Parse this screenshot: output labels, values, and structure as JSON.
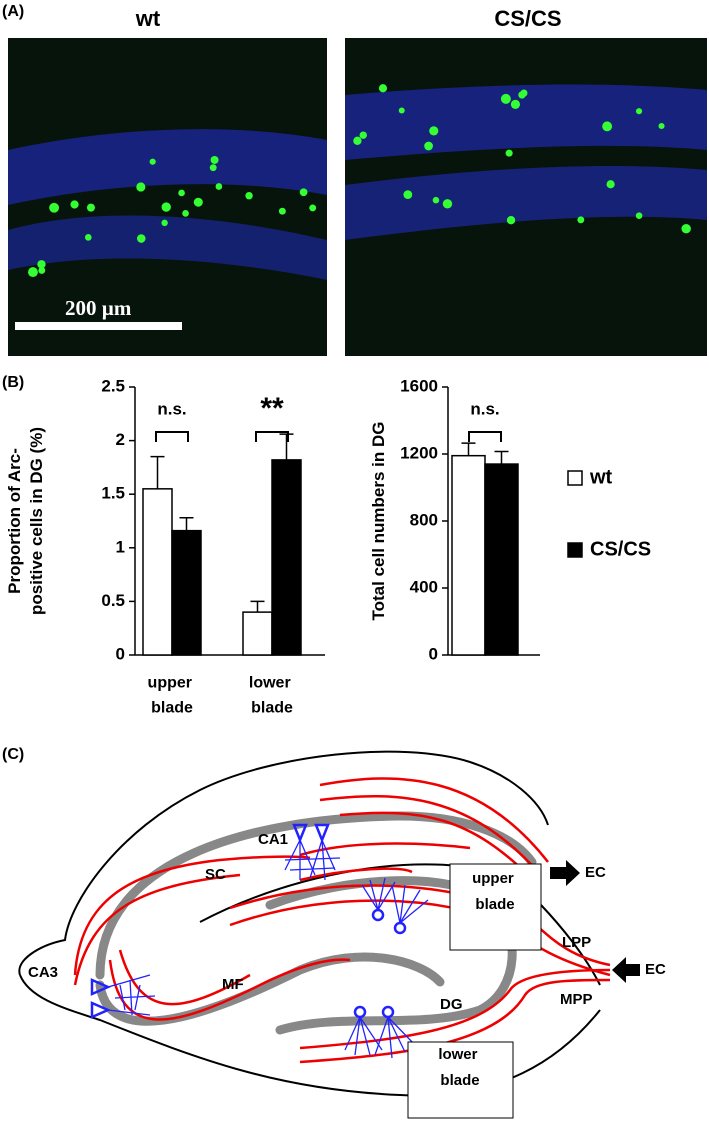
{
  "panels": {
    "A": {
      "label": "(A)",
      "titles": [
        "wt",
        "CS/CS"
      ],
      "scale_bar": "200 µm"
    },
    "B": {
      "label": "(B)"
    },
    "C": {
      "label": "(C)"
    }
  },
  "chart_data": [
    {
      "type": "bar",
      "ylabel": "Proportion of Arc-positive cells in DG (%)",
      "categories": [
        "upper blade",
        "lower blade"
      ],
      "series": [
        {
          "color": "#ffffff",
          "values": [
            1.55,
            0.4
          ],
          "errors": [
            0.3,
            0.1
          ]
        },
        {
          "color": "#000000",
          "values": [
            1.16,
            1.82
          ],
          "errors": [
            0.12,
            0.24
          ]
        }
      ],
      "ylim": [
        0,
        2.5
      ],
      "yticks": [
        0,
        0.5,
        1,
        1.5,
        2,
        2.5
      ],
      "annotations": [
        "n.s.",
        "**"
      ]
    },
    {
      "type": "bar",
      "ylabel": "Total cell numbers in DG",
      "categories": [
        null
      ],
      "series": [
        {
          "name": "wt",
          "color": "#ffffff",
          "values": [
            1190
          ],
          "errors": [
            75
          ]
        },
        {
          "name": "CS/CS",
          "color": "#000000",
          "values": [
            1140
          ],
          "errors": [
            75
          ]
        }
      ],
      "ylim": [
        0,
        1600
      ],
      "yticks": [
        0,
        400,
        800,
        1200,
        1600
      ],
      "legend": "right",
      "annotations": [
        "n.s."
      ]
    }
  ],
  "diagram": {
    "labels": {
      "ca1": "CA1",
      "sc": "SC",
      "ca3": "CA3",
      "mf": "MF",
      "dg": "DG",
      "ec_out": "EC",
      "ec_in": "EC",
      "lpp": "LPP",
      "mpp": "MPP",
      "upper": "upper blade",
      "lower": "lower blade"
    }
  }
}
